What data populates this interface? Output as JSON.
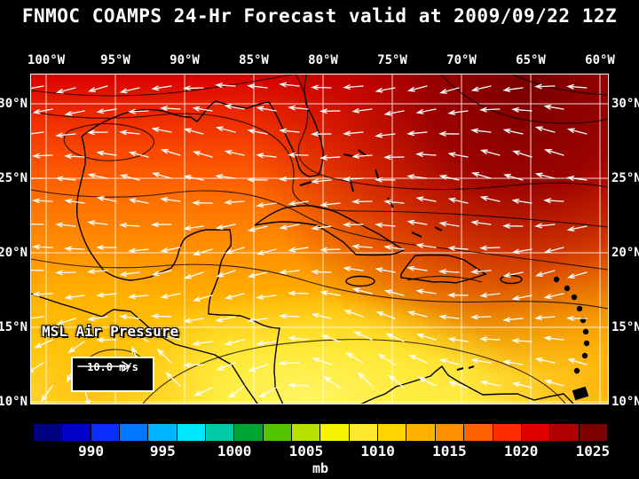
{
  "title": "FNMOC COAMPS 24-Hr Forecast valid at 2009/09/22 12Z",
  "map": {
    "field_label": "MSL Air Pressure",
    "wind_scale_label": "10.0 m/s",
    "lon_labels": [
      "100°W",
      "95°W",
      "90°W",
      "85°W",
      "80°W",
      "75°W",
      "70°W",
      "65°W",
      "60°W"
    ],
    "lat_labels_left": [
      "30°N",
      "25°N",
      "20°N",
      "15°N",
      "10°N"
    ],
    "lat_labels_right": [
      "30°N",
      "25°N",
      "20°N",
      "15°N",
      "10°N"
    ]
  },
  "colorbar": {
    "unit": "mb",
    "range_mb": [
      986,
      1026
    ],
    "ticks": [
      {
        "label": "990",
        "value": 990
      },
      {
        "label": "995",
        "value": 995
      },
      {
        "label": "1000",
        "value": 1000
      },
      {
        "label": "1005",
        "value": 1005
      },
      {
        "label": "1010",
        "value": 1010
      },
      {
        "label": "1015",
        "value": 1015
      },
      {
        "label": "1020",
        "value": 1020
      },
      {
        "label": "1025",
        "value": 1025
      }
    ],
    "segment_colors": [
      "#000082",
      "#0000c8",
      "#0a2fff",
      "#0077ff",
      "#00b4ff",
      "#00e6ff",
      "#00c9a5",
      "#00a434",
      "#53c400",
      "#b8e000",
      "#f7f300",
      "#ffe92e",
      "#ffd400",
      "#ffb300",
      "#ff8f00",
      "#ff6000",
      "#ff2d00",
      "#e10000",
      "#b00000",
      "#800000"
    ]
  },
  "chart_data": {
    "type": "heatmap",
    "title": "FNMOC COAMPS 24-Hr Forecast valid at 2009/09/22 12Z",
    "field": "MSL Air Pressure",
    "unit": "mb",
    "x_axis": {
      "label": "longitude",
      "ticks": [
        "100°W",
        "95°W",
        "90°W",
        "85°W",
        "80°W",
        "75°W",
        "70°W",
        "65°W",
        "60°W"
      ]
    },
    "y_axis": {
      "label": "latitude",
      "ticks": [
        "30°N",
        "25°N",
        "20°N",
        "15°N",
        "10°N"
      ]
    },
    "colorbar_ticks_mb": [
      990,
      995,
      1000,
      1005,
      1010,
      1015,
      1020,
      1025
    ],
    "colorbar_range_mb": [
      986,
      1026
    ],
    "wind_reference_ms": 10.0,
    "pattern_summary": "High pressure (~1022-1025 mb, dark red) over western Atlantic near 30N/65W; pressure decreases southwestward through red (~1018 mb) and orange (~1014 mb) to yellow (~1008-1010 mb) over the southwest Caribbean; white easterly trade-wind arrows cover the domain"
  }
}
